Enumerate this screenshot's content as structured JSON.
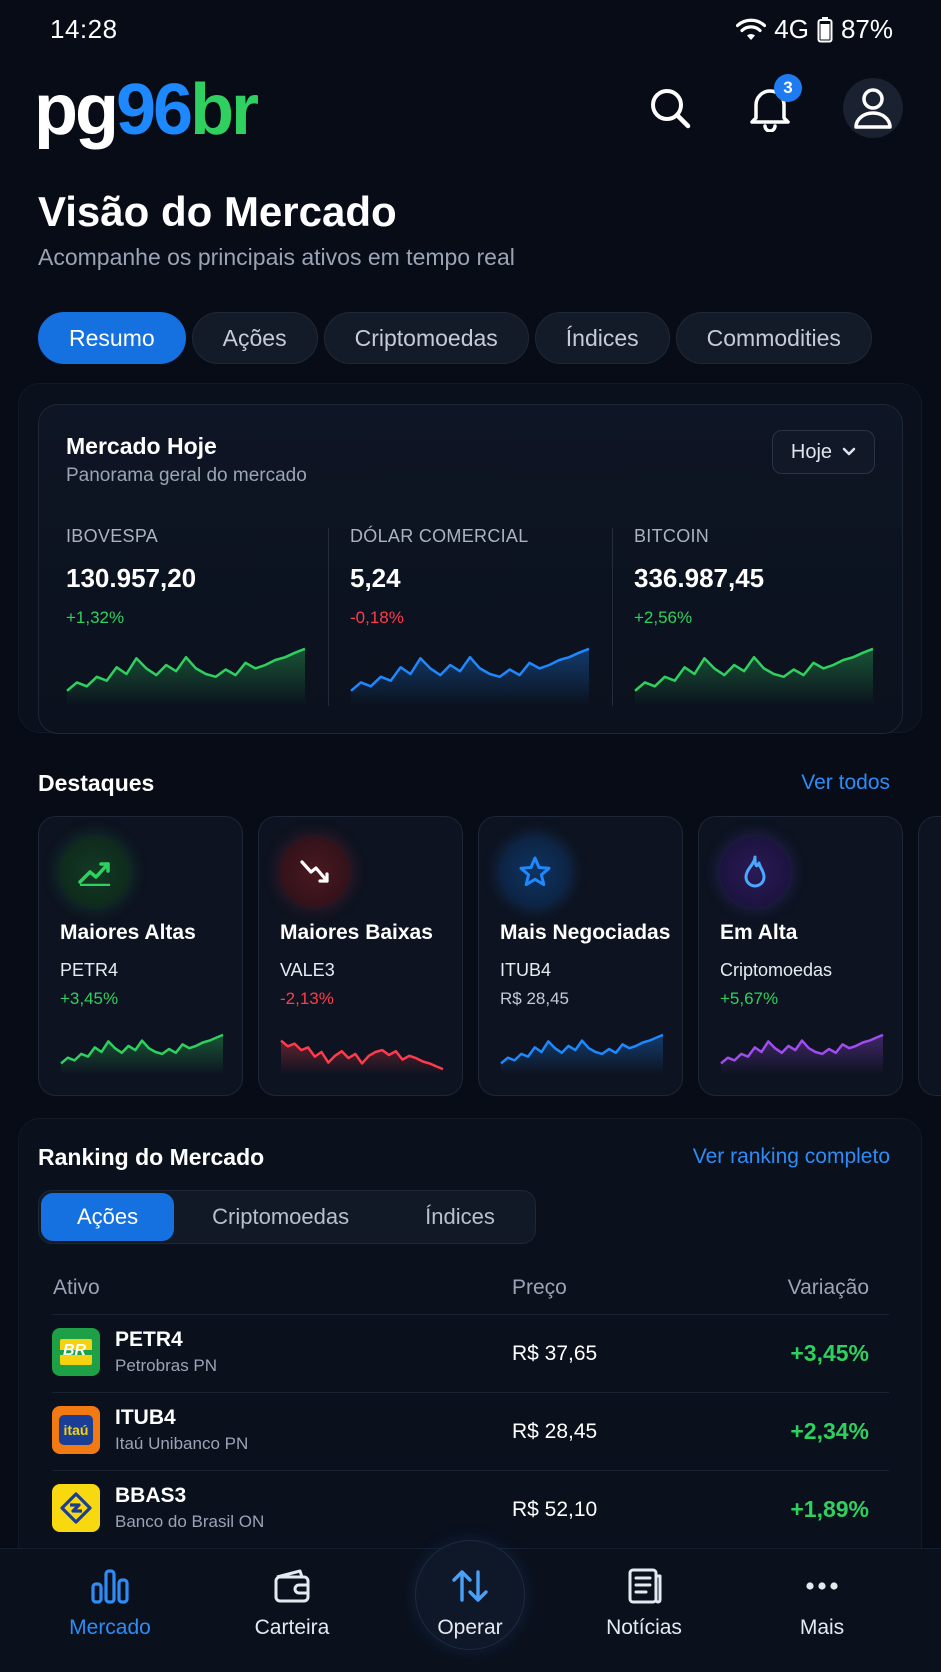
{
  "status_bar": {
    "time": "14:28",
    "network": "4G",
    "battery": "87%"
  },
  "header": {
    "logo_part1": "pg",
    "logo_part2": "96",
    "logo_part3": "br",
    "notification_count": "3"
  },
  "page": {
    "title": "Visão do Mercado",
    "subtitle": "Acompanhe os principais ativos em tempo real"
  },
  "tabs": [
    {
      "label": "Resumo",
      "active": true
    },
    {
      "label": "Ações",
      "active": false
    },
    {
      "label": "Criptomoedas",
      "active": false
    },
    {
      "label": "Índices",
      "active": false
    },
    {
      "label": "Commodities",
      "active": false
    }
  ],
  "market_card": {
    "title": "Mercado Hoje",
    "subtitle": "Panorama geral do mercado",
    "period": "Hoje",
    "stats": [
      {
        "label": "IBOVESPA",
        "value": "130.957,20",
        "change": "+1,32%",
        "trend": "up",
        "color": "#2fd15e"
      },
      {
        "label": "DÓLAR COMERCIAL",
        "value": "5,24",
        "change": "-0,18%",
        "trend": "down",
        "color": "#1e88ff"
      },
      {
        "label": "BITCOIN",
        "value": "336.987,45",
        "change": "+2,56%",
        "trend": "up",
        "color": "#2fd15e"
      }
    ]
  },
  "highlights": {
    "title": "Destaques",
    "link": "Ver todos",
    "cards": [
      {
        "title": "Maiores Altas",
        "symbol": "PETR4",
        "value": "+3,45%",
        "value_type": "pos",
        "icon": "trending-up-icon",
        "color": "#2fd15e"
      },
      {
        "title": "Maiores Baixas",
        "symbol": "VALE3",
        "value": "-2,13%",
        "value_type": "neg",
        "icon": "trending-down-icon",
        "color": "#ff3b4a"
      },
      {
        "title": "Mais Negociadas",
        "symbol": "ITUB4",
        "value": "R$ 28,45",
        "value_type": "neutral",
        "icon": "star-icon",
        "color": "#1e88ff"
      },
      {
        "title": "Em Alta",
        "symbol": "Criptomoedas",
        "value": "+5,67%",
        "value_type": "pos",
        "icon": "flame-icon",
        "color": "#a04cf0"
      }
    ]
  },
  "ranking": {
    "title": "Ranking do Mercado",
    "link": "Ver ranking completo",
    "tabs": [
      {
        "label": "Ações",
        "active": true
      },
      {
        "label": "Criptomoedas",
        "active": false
      },
      {
        "label": "Índices",
        "active": false
      }
    ],
    "columns": {
      "asset": "Ativo",
      "price": "Preço",
      "change": "Variação"
    },
    "rows": [
      {
        "symbol": "PETR4",
        "name": "Petrobras PN",
        "price": "R$ 37,65",
        "change": "+3,45%",
        "logo_text": "BR"
      },
      {
        "symbol": "ITUB4",
        "name": "Itaú Unibanco PN",
        "price": "R$ 28,45",
        "change": "+2,34%",
        "logo_text": "itaú"
      },
      {
        "symbol": "BBAS3",
        "name": "Banco do Brasil ON",
        "price": "R$ 52,10",
        "change": "+1,89%",
        "logo_text": ""
      }
    ]
  },
  "bottom_nav": [
    {
      "label": "Mercado",
      "active": true,
      "icon": "bar-chart-icon"
    },
    {
      "label": "Carteira",
      "active": false,
      "icon": "wallet-icon"
    },
    {
      "label": "Operar",
      "active": false,
      "icon": "swap-icon"
    },
    {
      "label": "Notícias",
      "active": false,
      "icon": "news-icon"
    },
    {
      "label": "Mais",
      "active": false,
      "icon": "more-icon"
    }
  ]
}
